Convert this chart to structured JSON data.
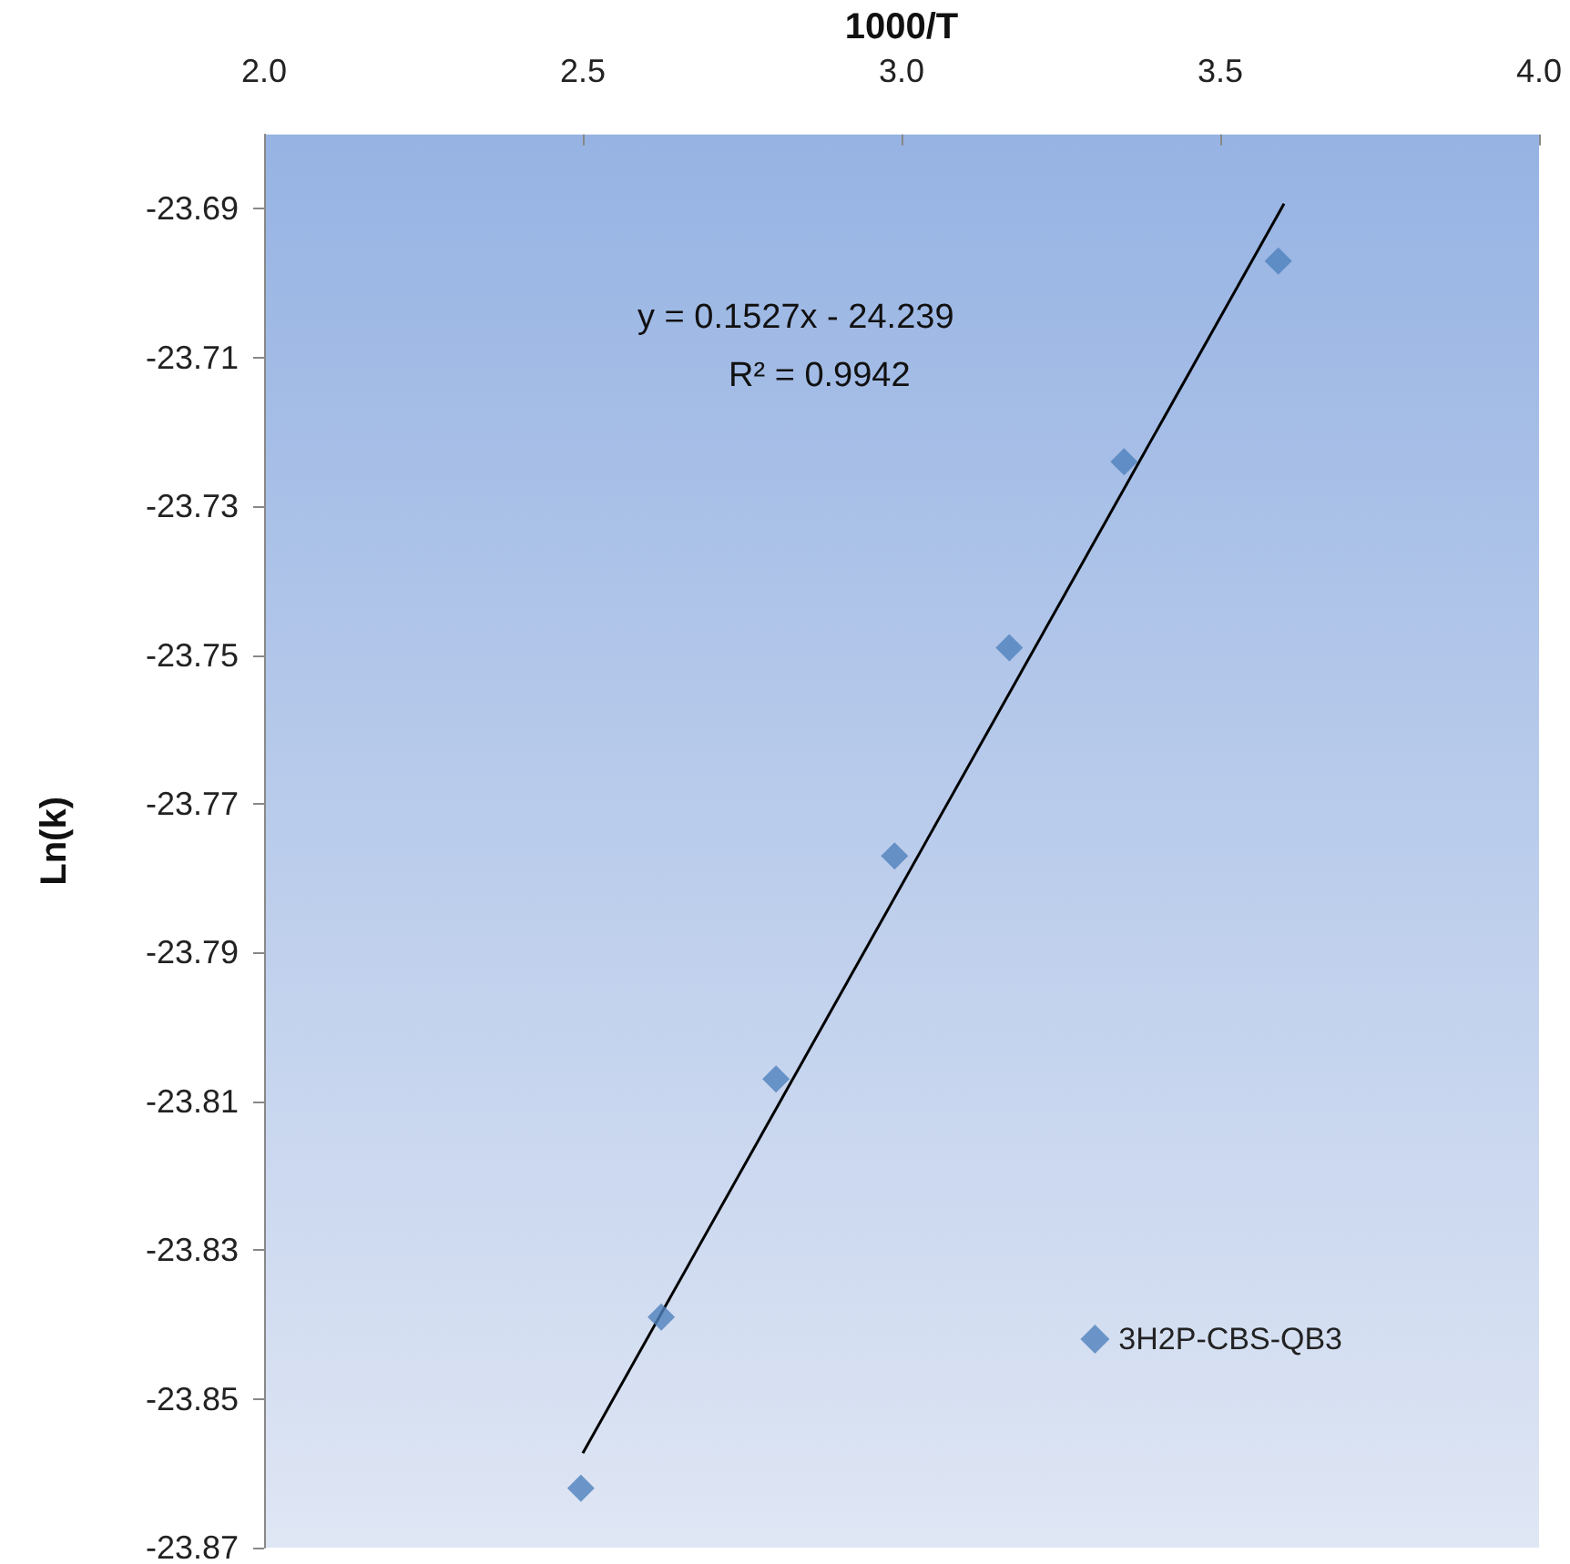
{
  "chart_data": {
    "type": "scatter",
    "xlabel": "1000/T",
    "ylabel": "Ln(k)",
    "xlim": [
      2.0,
      4.0
    ],
    "xticks": [
      {
        "value": 2,
        "label": "2.0"
      },
      {
        "value": 2.5,
        "label": "2.5"
      },
      {
        "value": 3,
        "label": "3.0"
      },
      {
        "value": 3.5,
        "label": "3.5"
      },
      {
        "value": 4,
        "label": "4.0"
      }
    ],
    "ylim": [
      -23.87,
      -23.68
    ],
    "yticks": [
      -23.87,
      -23.85,
      -23.83,
      -23.81,
      -23.79,
      -23.77,
      -23.75,
      -23.73,
      -23.71,
      -23.69
    ],
    "series": [
      {
        "name": "3H2P-CBS-QB3",
        "color": "#4f81bd",
        "marker": "diamond",
        "x": [
          2.497,
          2.623,
          2.803,
          2.989,
          3.169,
          3.349,
          3.591
        ],
        "values": [
          -23.862,
          -23.839,
          -23.807,
          -23.777,
          -23.749,
          -23.724,
          -23.697
        ]
      },
      {
        "type": "line",
        "color": "#000000",
        "marker": "none",
        "x": [
          2.5,
          3.6
        ],
        "values": [
          -23.8573,
          -23.6893
        ]
      }
    ],
    "annotations": [
      "y = 0.1527x - 24.239",
      "R² = 0.9942"
    ],
    "legend": "bottom right",
    "grid": false
  }
}
